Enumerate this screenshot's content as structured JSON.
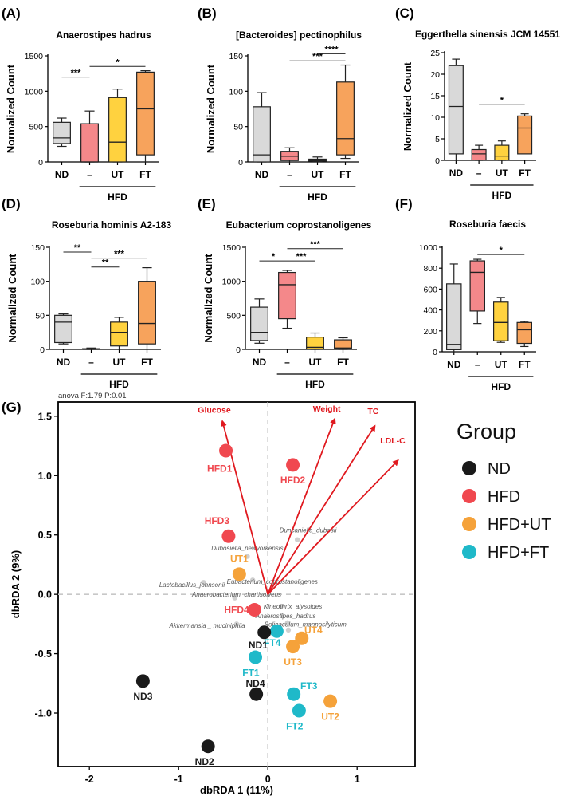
{
  "colors": {
    "ND": "#d9d9d9",
    "HFD": "#f4888a",
    "UT": "#ffd23f",
    "FT": "#f7a35c",
    "stroke": "#222222",
    "arrow": "#e0191f",
    "sig": "#222222"
  },
  "box_panels": [
    {
      "letter": "(A)",
      "title": "Anaerostipes hadrus",
      "ylabel": "Normalized Count",
      "ylim": [
        0,
        1500
      ],
      "ticks": [
        0,
        500,
        1000,
        1500
      ],
      "categories": [
        "ND",
        "–",
        "UT",
        "FT"
      ],
      "group_label": "HFD",
      "boxes": [
        {
          "min": 220,
          "q1": 260,
          "med": 340,
          "q3": 560,
          "max": 620
        },
        {
          "min": 0,
          "q1": 0,
          "med": 0,
          "q3": 540,
          "max": 720
        },
        {
          "min": 0,
          "q1": 0,
          "med": 280,
          "q3": 910,
          "max": 1030
        },
        {
          "min": 0,
          "q1": 100,
          "med": 750,
          "q3": 1270,
          "max": 1290
        }
      ],
      "sig": [
        {
          "a": 0,
          "b": 1,
          "label": "***",
          "level": 1200
        },
        {
          "a": 1,
          "b": 3,
          "label": "*",
          "level": 1350
        }
      ]
    },
    {
      "letter": "(B)",
      "title": "[Bacteroides] pectinophilus",
      "ylabel": "Normalized Count",
      "ylim": [
        0,
        150
      ],
      "ticks": [
        0,
        50,
        100,
        150
      ],
      "categories": [
        "ND",
        "–",
        "UT",
        "FT"
      ],
      "group_label": "HFD",
      "boxes": [
        {
          "min": 0,
          "q1": 0,
          "med": 10,
          "q3": 78,
          "max": 98
        },
        {
          "min": 0,
          "q1": 2,
          "med": 8,
          "q3": 15,
          "max": 20
        },
        {
          "min": 0,
          "q1": 1,
          "med": 2,
          "q3": 4,
          "max": 7
        },
        {
          "min": 5,
          "q1": 10,
          "med": 33,
          "q3": 113,
          "max": 137
        }
      ],
      "sig": [
        {
          "a": 1,
          "b": 3,
          "label": "***",
          "level": 143
        },
        {
          "a": 2,
          "b": 3,
          "label": "****",
          "level": 153
        }
      ]
    },
    {
      "letter": "(C)",
      "title": "Eggerthella sinensis JCM 14551",
      "ylabel": "Normalized Count",
      "ylim": [
        0,
        25
      ],
      "ticks": [
        0,
        5,
        10,
        15,
        20,
        25
      ],
      "categories": [
        "ND",
        "–",
        "UT",
        "FT"
      ],
      "group_label": "HFD",
      "boxes": [
        {
          "min": 0,
          "q1": 1.5,
          "med": 12.5,
          "q3": 22,
          "max": 23.5
        },
        {
          "min": 0,
          "q1": 0,
          "med": 1.5,
          "q3": 2.5,
          "max": 3.5
        },
        {
          "min": 0,
          "q1": 0,
          "med": 1,
          "q3": 3.5,
          "max": 4.5
        },
        {
          "min": 1.5,
          "q1": 1.5,
          "med": 7.5,
          "q3": 10.3,
          "max": 10.8
        }
      ],
      "sig": [
        {
          "a": 1,
          "b": 3,
          "label": "*",
          "level": 13
        }
      ]
    },
    {
      "letter": "(D)",
      "title": "Roseburia hominis A2-183",
      "ylabel": "Normalized Count",
      "ylim": [
        0,
        150
      ],
      "ticks": [
        0,
        50,
        100,
        150
      ],
      "categories": [
        "ND",
        "–",
        "UT",
        "FT"
      ],
      "group_label": "HFD",
      "boxes": [
        {
          "min": 8,
          "q1": 10,
          "med": 40,
          "q3": 50,
          "max": 52
        },
        {
          "min": 0,
          "q1": 0,
          "med": 0,
          "q3": 1,
          "max": 2
        },
        {
          "min": 0,
          "q1": 5,
          "med": 25,
          "q3": 40,
          "max": 47
        },
        {
          "min": 0,
          "q1": 8,
          "med": 38,
          "q3": 100,
          "max": 120
        }
      ],
      "sig": [
        {
          "a": 0,
          "b": 1,
          "label": "**",
          "level": 143
        },
        {
          "a": 1,
          "b": 2,
          "label": "**",
          "level": 121
        },
        {
          "a": 1,
          "b": 3,
          "label": "***",
          "level": 134
        }
      ]
    },
    {
      "letter": "(E)",
      "title": "Eubacterium coprostanoligenes",
      "ylabel": "Normalized Count",
      "ylim": [
        0,
        1500
      ],
      "ticks": [
        0,
        500,
        1000,
        1500
      ],
      "categories": [
        "ND",
        "–",
        "UT",
        "FT"
      ],
      "group_label": "HFD",
      "boxes": [
        {
          "min": 90,
          "q1": 130,
          "med": 250,
          "q3": 620,
          "max": 740
        },
        {
          "min": 310,
          "q1": 450,
          "med": 950,
          "q3": 1130,
          "max": 1160
        },
        {
          "min": 0,
          "q1": 0,
          "med": 30,
          "q3": 180,
          "max": 240
        },
        {
          "min": 0,
          "q1": 0,
          "med": 20,
          "q3": 140,
          "max": 170
        }
      ],
      "sig": [
        {
          "a": 0,
          "b": 1,
          "label": "*",
          "level": 1300
        },
        {
          "a": 1,
          "b": 2,
          "label": "***",
          "level": 1300
        },
        {
          "a": 1,
          "b": 3,
          "label": "***",
          "level": 1480
        }
      ]
    },
    {
      "letter": "(F)",
      "title": "Roseburia faecis",
      "ylabel": "",
      "ylim": [
        0,
        1000
      ],
      "ticks": [
        0,
        200,
        400,
        600,
        800,
        1000
      ],
      "categories": [
        "ND",
        "–",
        "UT",
        "FT"
      ],
      "group_label": "HFD",
      "boxes": [
        {
          "min": 0,
          "q1": 20,
          "med": 70,
          "q3": 650,
          "max": 840
        },
        {
          "min": 270,
          "q1": 390,
          "med": 760,
          "q3": 870,
          "max": 885
        },
        {
          "min": 90,
          "q1": 105,
          "med": 280,
          "q3": 475,
          "max": 520
        },
        {
          "min": 50,
          "q1": 80,
          "med": 210,
          "q3": 280,
          "max": 290
        }
      ],
      "sig": [
        {
          "a": 1,
          "b": 3,
          "label": "*",
          "level": 930
        }
      ]
    }
  ],
  "panel_g": {
    "letter": "(G)",
    "anova": "anova F:1.79 P:0.01",
    "xlabel": "dbRDA 1 (11%)",
    "ylabel": "dbRDA 2 (9%)",
    "xlim": [
      -2.35,
      1.65
    ],
    "ylim": [
      -1.45,
      1.62
    ],
    "xticks": [
      -2,
      -1,
      0,
      1
    ],
    "yticks": [
      -1.0,
      -0.5,
      0.0,
      0.5,
      1.0,
      1.5
    ],
    "xtick_labels": [
      "-2",
      "-1",
      "0",
      "1"
    ],
    "ytick_labels": [
      "-1.0",
      "-0.5",
      "0.0",
      "0.5",
      "1.0",
      "1.5"
    ],
    "legend_title": "Group",
    "legend": [
      {
        "label": "ND",
        "color": "#1a1a1a"
      },
      {
        "label": "HFD",
        "color": "#f0484f"
      },
      {
        "label": "HFD+UT",
        "color": "#f5a23a"
      },
      {
        "label": "HFD+FT",
        "color": "#1fb9c9"
      }
    ],
    "samples": [
      {
        "label": "HFD1",
        "group": "HFD",
        "x": -0.47,
        "y": 1.21,
        "lx": -0.07,
        "ly": -0.15
      },
      {
        "label": "HFD2",
        "group": "HFD",
        "x": 0.28,
        "y": 1.09,
        "lx": 0.0,
        "ly": -0.13
      },
      {
        "label": "HFD3",
        "group": "HFD",
        "x": -0.44,
        "y": 0.49,
        "lx": -0.13,
        "ly": 0.13
      },
      {
        "label": "HFD4",
        "group": "HFD",
        "x": -0.15,
        "y": -0.13,
        "lx": -0.2,
        "ly": 0.0
      },
      {
        "label": "UT1",
        "group": "UT",
        "x": -0.32,
        "y": 0.17,
        "lx": 0.0,
        "ly": 0.13
      },
      {
        "label": "UT2",
        "group": "UT",
        "x": 0.7,
        "y": -0.9,
        "lx": 0.0,
        "ly": -0.13
      },
      {
        "label": "UT3",
        "group": "UT",
        "x": 0.28,
        "y": -0.44,
        "lx": 0.0,
        "ly": -0.13
      },
      {
        "label": "UT4",
        "group": "UT",
        "x": 0.38,
        "y": -0.37,
        "lx": 0.13,
        "ly": 0.07
      },
      {
        "label": "FT1",
        "group": "FT",
        "x": -0.14,
        "y": -0.53,
        "lx": -0.05,
        "ly": -0.13
      },
      {
        "label": "FT2",
        "group": "FT",
        "x": 0.35,
        "y": -0.98,
        "lx": -0.05,
        "ly": -0.13
      },
      {
        "label": "FT3",
        "group": "FT",
        "x": 0.29,
        "y": -0.84,
        "lx": 0.17,
        "ly": 0.07
      },
      {
        "label": "FT4",
        "group": "FT",
        "x": 0.1,
        "y": -0.31,
        "lx": -0.05,
        "ly": -0.1
      },
      {
        "label": "ND1",
        "group": "ND",
        "x": -0.04,
        "y": -0.32,
        "lx": -0.07,
        "ly": -0.11
      },
      {
        "label": "ND2",
        "group": "ND",
        "x": -0.67,
        "y": -1.28,
        "lx": -0.04,
        "ly": -0.13
      },
      {
        "label": "ND3",
        "group": "ND",
        "x": -1.4,
        "y": -0.73,
        "lx": 0.0,
        "ly": -0.13
      },
      {
        "label": "ND4",
        "group": "ND",
        "x": -0.13,
        "y": -0.84,
        "lx": -0.01,
        "ly": 0.09
      }
    ],
    "arrows": [
      {
        "label": "Glucose",
        "x": -0.51,
        "y": 1.46,
        "lx": -0.6,
        "ly": 1.53
      },
      {
        "label": "Weight",
        "x": 0.75,
        "y": 1.48,
        "lx": 0.66,
        "ly": 1.54
      },
      {
        "label": "TC",
        "x": 1.2,
        "y": 1.42,
        "lx": 1.18,
        "ly": 1.52
      },
      {
        "label": "LDL-C",
        "x": 1.46,
        "y": 1.13,
        "lx": 1.4,
        "ly": 1.27
      }
    ],
    "taxa": [
      {
        "label": "Dubosiella_newyorkensis",
        "x": -0.23,
        "y": 0.32,
        "lx": -0.23,
        "ly": 0.37
      },
      {
        "label": "Duncaniella_dubosii",
        "x": 0.33,
        "y": 0.46,
        "lx": 0.45,
        "ly": 0.52
      },
      {
        "label": "Eubacterium_coprostanoligenes",
        "x": -0.17,
        "y": 0.12,
        "lx": 0.05,
        "ly": 0.09
      },
      {
        "label": "Lactobacillus_johnsonii",
        "x": -0.72,
        "y": 0.1,
        "lx": -0.85,
        "ly": 0.06
      },
      {
        "label": "Anaerobacterium_chartisolvens",
        "x": -0.37,
        "y": -0.03,
        "lx": -0.35,
        "ly": -0.02
      },
      {
        "label": "Kineothrix_alysoides",
        "x": 0.15,
        "y": -0.1,
        "lx": 0.28,
        "ly": -0.12
      },
      {
        "label": "Anaerostipes_hadrus",
        "x": 0.16,
        "y": -0.18,
        "lx": 0.2,
        "ly": -0.2
      },
      {
        "label": "Akkermansia _ muciniphila",
        "x": -0.35,
        "y": -0.25,
        "lx": -0.68,
        "ly": -0.28
      },
      {
        "label": "Solibaculum_mannosilyticum",
        "x": 0.22,
        "y": -0.24,
        "lx": 0.42,
        "ly": -0.27
      },
      {
        "label": "",
        "x": 0.23,
        "y": -0.3,
        "lx": 0,
        "ly": 0
      }
    ]
  }
}
